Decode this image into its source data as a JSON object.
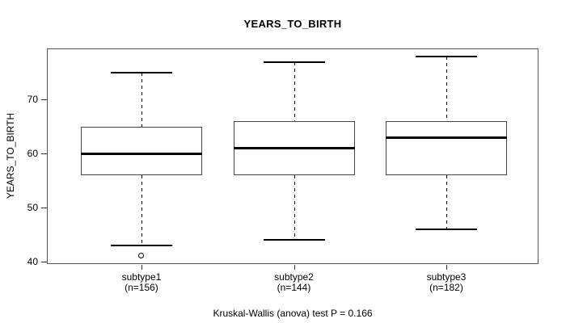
{
  "chart_data": {
    "type": "boxplot",
    "title": "YEARS_TO_BIRTH",
    "ylabel": "YEARS_TO_BIRTH",
    "xlabel": "",
    "caption": "Kruskal-Wallis (anova) test P = 0.166",
    "ylim": [
      39.5,
      79.5
    ],
    "yticks": [
      40,
      50,
      60,
      70
    ],
    "grid": false,
    "legend": false,
    "groups": [
      {
        "label": "subtype1",
        "sublabel": "(n=156)",
        "n": 156,
        "lower_whisker": 43,
        "q1": 56,
        "median": 60,
        "q3": 65,
        "upper_whisker": 75,
        "outliers": [
          41
        ]
      },
      {
        "label": "subtype2",
        "sublabel": "(n=144)",
        "n": 144,
        "lower_whisker": 44,
        "q1": 56,
        "median": 61,
        "q3": 66,
        "upper_whisker": 77,
        "outliers": []
      },
      {
        "label": "subtype3",
        "sublabel": "(n=182)",
        "n": 182,
        "lower_whisker": 46,
        "q1": 56,
        "median": 63,
        "q3": 66,
        "upper_whisker": 78,
        "outliers": []
      }
    ],
    "colors": {
      "background": "#ffffff",
      "frame": "#555555",
      "box_border": "#444444",
      "median": "#000000",
      "whisker": "#000000",
      "text": "#000000"
    }
  }
}
